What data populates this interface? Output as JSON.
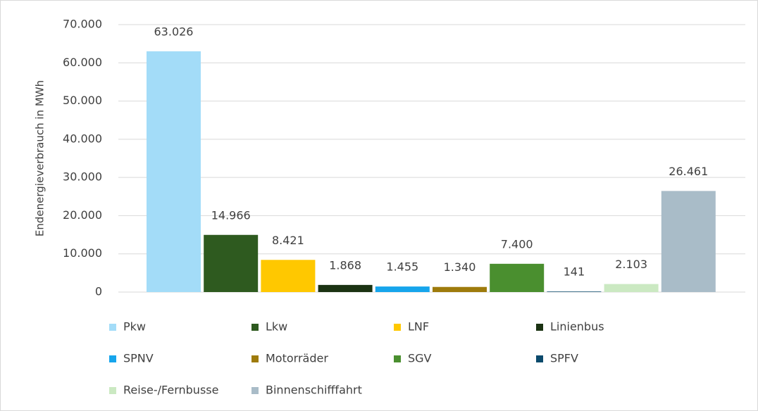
{
  "chart_data": {
    "type": "bar",
    "ylabel": "Endenergieverbrauch in  MWh",
    "categories": [
      null
    ],
    "series": [
      {
        "name": "Pkw",
        "color": "#a3dcf8",
        "values": [
          63026
        ],
        "value_labels": [
          "63.026"
        ]
      },
      {
        "name": "Lkw",
        "color": "#2e5a1f",
        "values": [
          14966
        ],
        "value_labels": [
          "14.966"
        ]
      },
      {
        "name": "LNF",
        "color": "#ffc800",
        "values": [
          8421
        ],
        "value_labels": [
          "8.421"
        ]
      },
      {
        "name": "Linienbus",
        "color": "#1b3313",
        "values": [
          1868
        ],
        "value_labels": [
          "1.868"
        ]
      },
      {
        "name": "SPNV",
        "color": "#16a5ec",
        "values": [
          1455
        ],
        "value_labels": [
          "1.455"
        ]
      },
      {
        "name": "Motorräder",
        "color": "#9e7b0c",
        "values": [
          1340
        ],
        "value_labels": [
          "1.340"
        ]
      },
      {
        "name": "SGV",
        "color": "#4a8f2f",
        "values": [
          7400
        ],
        "value_labels": [
          "7.400"
        ]
      },
      {
        "name": "SPFV",
        "color": "#0b4a6c",
        "values": [
          141
        ]
      },
      {
        "name": "Reise-/Fernbusse",
        "color": "#cbe9c2",
        "values": [
          2103
        ],
        "value_labels": [
          "2.103"
        ]
      },
      {
        "name": "Binnenschifffahrt",
        "color": "#a9bcc8",
        "values": [
          26461
        ],
        "value_labels": [
          "26.461"
        ]
      }
    ],
    "ylim": [
      0,
      70000
    ],
    "yticks": [
      0,
      {
        "value": 10000,
        "label": "10.000"
      },
      {
        "value": 20000,
        "label": "20.000"
      },
      {
        "value": 30000,
        "label": "30.000"
      },
      {
        "value": 40000,
        "label": "40.000"
      },
      {
        "value": 50000,
        "label": "50.000"
      },
      {
        "value": 60000,
        "label": "60.000"
      },
      {
        "value": 70000,
        "label": "70.000"
      }
    ],
    "grid": true,
    "legend": "bottom"
  }
}
